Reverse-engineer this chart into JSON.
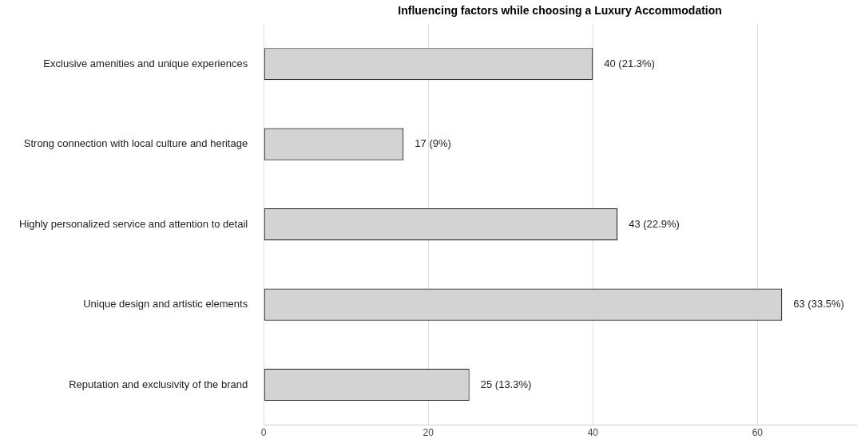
{
  "chart_data": {
    "type": "bar",
    "orientation": "horizontal",
    "title": "Influencing factors while choosing a Luxury Accommodation",
    "categories": [
      "Exclusive amenities and unique experiences",
      "Strong connection with local culture and heritage",
      "Highly personalized service and attention to detail",
      "Unique design and artistic elements",
      "Reputation and exclusivity of the brand"
    ],
    "values": [
      40,
      17,
      43,
      63,
      25
    ],
    "value_labels": [
      "40 (21.3%)",
      "17 (9%)",
      "43 (22.9%)",
      "63 (33.5%)",
      "25 (13.3%)"
    ],
    "color": "#d3d3d3",
    "xlim": [
      0,
      72
    ],
    "xticks": [
      0,
      20,
      40,
      60
    ],
    "grid": "x",
    "legend": false
  }
}
